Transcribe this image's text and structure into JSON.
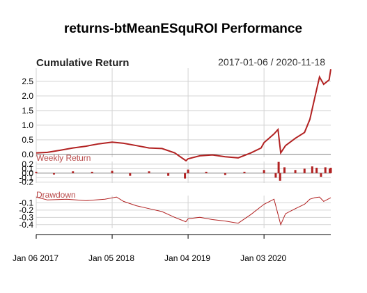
{
  "title": "returns-btMeanESquROI Performance",
  "panel_title": "Cumulative Return",
  "date_range": "2017-01-06 / 2020-11-18",
  "series_color": "#b22222",
  "grid_color": "#d3d3d3",
  "chart_data": [
    {
      "type": "line",
      "name": "Cumulative Return",
      "ylim": [
        -0.1,
        2.95
      ],
      "yticks": [
        "0.0",
        "0.5",
        "1.0",
        "1.5",
        "2.0",
        "2.5"
      ],
      "grid": true,
      "x": [
        "2017-01-06",
        "2017-03-01",
        "2017-05-01",
        "2017-07-01",
        "2017-09-01",
        "2017-11-01",
        "2018-01-05",
        "2018-03-01",
        "2018-05-01",
        "2018-07-01",
        "2018-09-01",
        "2018-11-01",
        "2018-12-25",
        "2019-01-04",
        "2019-03-01",
        "2019-05-01",
        "2019-07-01",
        "2019-09-01",
        "2019-11-01",
        "2019-12-20",
        "2020-01-03",
        "2020-02-20",
        "2020-03-10",
        "2020-03-23",
        "2020-04-15",
        "2020-06-01",
        "2020-07-15",
        "2020-08-10",
        "2020-09-01",
        "2020-09-25",
        "2020-10-15",
        "2020-11-10",
        "2020-11-18"
      ],
      "values": [
        0.05,
        0.07,
        0.14,
        0.22,
        0.28,
        0.36,
        0.42,
        0.38,
        0.3,
        0.22,
        0.2,
        0.05,
        -0.22,
        -0.15,
        -0.05,
        -0.02,
        -0.08,
        -0.12,
        0.05,
        0.22,
        0.4,
        0.7,
        0.85,
        0.05,
        0.3,
        0.55,
        0.75,
        1.2,
        1.9,
        2.65,
        2.4,
        2.55,
        2.92
      ]
    },
    {
      "type": "bar",
      "name": "Weekly Return",
      "label": "Weekly Return",
      "ylim": [
        -0.22,
        0.26
      ],
      "yticks": [
        "0.2",
        "0.1",
        "0.0",
        "-0.1",
        "-0.2"
      ],
      "x": [
        "2017-01-06",
        "2017-04-01",
        "2017-07-01",
        "2017-10-01",
        "2018-01-05",
        "2018-04-01",
        "2018-07-01",
        "2018-10-01",
        "2018-12-20",
        "2019-01-04",
        "2019-04-01",
        "2019-07-01",
        "2019-10-01",
        "2020-01-03",
        "2020-02-28",
        "2020-03-13",
        "2020-03-20",
        "2020-04-10",
        "2020-06-01",
        "2020-07-15",
        "2020-08-21",
        "2020-09-11",
        "2020-10-02",
        "2020-10-23",
        "2020-11-13",
        "2020-11-18"
      ],
      "values": [
        0.03,
        -0.03,
        0.04,
        0.03,
        0.05,
        -0.06,
        0.04,
        -0.06,
        -0.12,
        0.08,
        0.03,
        -0.04,
        0.03,
        0.07,
        -0.1,
        0.25,
        -0.17,
        0.13,
        0.07,
        0.1,
        0.15,
        0.12,
        -0.08,
        0.13,
        0.1,
        0.12
      ]
    },
    {
      "type": "line",
      "name": "Drawdown",
      "label": "Drawdown",
      "ylim": [
        -0.45,
        0.0
      ],
      "yticks": [
        "-0.1",
        "-0.2",
        "-0.3",
        "-0.4"
      ],
      "x": [
        "2017-01-06",
        "2017-03-01",
        "2017-06-01",
        "2017-09-01",
        "2017-12-01",
        "2018-01-26",
        "2018-03-01",
        "2018-05-01",
        "2018-07-01",
        "2018-09-01",
        "2018-11-01",
        "2018-12-24",
        "2019-01-04",
        "2019-03-01",
        "2019-05-01",
        "2019-07-01",
        "2019-09-01",
        "2019-11-01",
        "2020-01-03",
        "2020-02-20",
        "2020-03-23",
        "2020-04-15",
        "2020-06-01",
        "2020-07-15",
        "2020-08-10",
        "2020-09-01",
        "2020-09-25",
        "2020-10-15",
        "2020-11-18"
      ],
      "values": [
        -0.02,
        -0.06,
        -0.05,
        -0.07,
        -0.05,
        -0.02,
        -0.08,
        -0.14,
        -0.18,
        -0.22,
        -0.3,
        -0.36,
        -0.32,
        -0.3,
        -0.33,
        -0.35,
        -0.38,
        -0.26,
        -0.12,
        -0.05,
        -0.4,
        -0.25,
        -0.18,
        -0.12,
        -0.05,
        -0.03,
        -0.02,
        -0.08,
        -0.03
      ]
    }
  ],
  "x_axis_labels": [
    {
      "label": "Jan 06 2017",
      "date": "2017-01-06"
    },
    {
      "label": "Jan 05 2018",
      "date": "2018-01-05"
    },
    {
      "label": "Jan 04 2019",
      "date": "2019-01-04"
    },
    {
      "label": "Jan 03 2020",
      "date": "2020-01-03"
    }
  ]
}
